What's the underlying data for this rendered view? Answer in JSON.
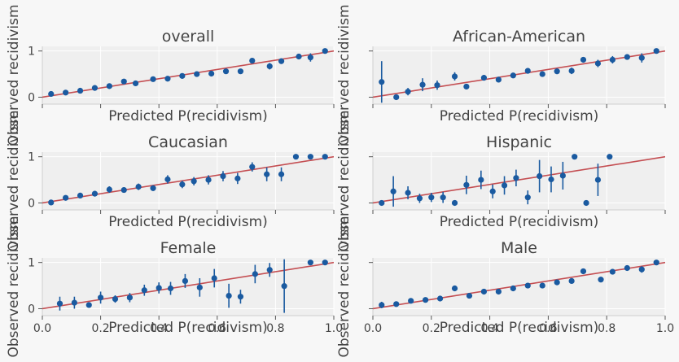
{
  "chart_data": [
    {
      "type": "scatter",
      "title": "overall",
      "xlabel": "Predicted P(recidivism)",
      "ylabel": "Observed recidivism",
      "xlim": [
        0,
        1
      ],
      "ylim": [
        -0.15,
        1.1
      ],
      "xticks": [
        0.0,
        0.2,
        0.4,
        0.6,
        0.8,
        1.0
      ],
      "yticks": [
        0,
        1
      ],
      "xtick_labels": [
        "",
        "",
        "",
        "",
        "",
        ""
      ],
      "ytick_labels": [
        "0",
        "1"
      ],
      "reference_line": [
        [
          0,
          0
        ],
        [
          1,
          1
        ]
      ],
      "points": [
        {
          "x": 0.03,
          "y": 0.07,
          "err": 0.05
        },
        {
          "x": 0.08,
          "y": 0.1,
          "err": 0.04
        },
        {
          "x": 0.13,
          "y": 0.14,
          "err": 0.03
        },
        {
          "x": 0.18,
          "y": 0.2,
          "err": 0.03
        },
        {
          "x": 0.23,
          "y": 0.24,
          "err": 0.03
        },
        {
          "x": 0.28,
          "y": 0.34,
          "err": 0.04
        },
        {
          "x": 0.32,
          "y": 0.3,
          "err": 0.03
        },
        {
          "x": 0.38,
          "y": 0.39,
          "err": 0.03
        },
        {
          "x": 0.43,
          "y": 0.4,
          "err": 0.03
        },
        {
          "x": 0.48,
          "y": 0.46,
          "err": 0.03
        },
        {
          "x": 0.53,
          "y": 0.5,
          "err": 0.04
        },
        {
          "x": 0.58,
          "y": 0.51,
          "err": 0.03
        },
        {
          "x": 0.63,
          "y": 0.56,
          "err": 0.04
        },
        {
          "x": 0.68,
          "y": 0.56,
          "err": 0.05
        },
        {
          "x": 0.72,
          "y": 0.79,
          "err": 0.04
        },
        {
          "x": 0.78,
          "y": 0.67,
          "err": 0.07
        },
        {
          "x": 0.82,
          "y": 0.78,
          "err": 0.06
        },
        {
          "x": 0.88,
          "y": 0.88,
          "err": 0.05
        },
        {
          "x": 0.92,
          "y": 0.86,
          "err": 0.09
        },
        {
          "x": 0.97,
          "y": 1.0,
          "err": 0.0
        }
      ]
    },
    {
      "type": "scatter",
      "title": "African-American",
      "xlabel": "Predicted P(recidivism)",
      "ylabel": "Observed recidivism",
      "xlim": [
        0,
        1
      ],
      "ylim": [
        -0.15,
        1.1
      ],
      "xticks": [
        0.0,
        0.2,
        0.4,
        0.6,
        0.8,
        1.0
      ],
      "yticks": [
        0,
        1
      ],
      "xtick_labels": [
        "",
        "",
        "",
        "",
        "",
        ""
      ],
      "ytick_labels": [
        "",
        ""
      ],
      "reference_line": [
        [
          0,
          0
        ],
        [
          1,
          1
        ]
      ],
      "points": [
        {
          "x": 0.03,
          "y": 0.33,
          "err": 0.45
        },
        {
          "x": 0.08,
          "y": 0.0,
          "err": 0.0
        },
        {
          "x": 0.12,
          "y": 0.12,
          "err": 0.08
        },
        {
          "x": 0.17,
          "y": 0.27,
          "err": 0.14
        },
        {
          "x": 0.22,
          "y": 0.26,
          "err": 0.1
        },
        {
          "x": 0.28,
          "y": 0.45,
          "err": 0.09
        },
        {
          "x": 0.32,
          "y": 0.23,
          "err": 0.06
        },
        {
          "x": 0.38,
          "y": 0.42,
          "err": 0.06
        },
        {
          "x": 0.43,
          "y": 0.38,
          "err": 0.06
        },
        {
          "x": 0.48,
          "y": 0.47,
          "err": 0.05
        },
        {
          "x": 0.53,
          "y": 0.57,
          "err": 0.06
        },
        {
          "x": 0.58,
          "y": 0.5,
          "err": 0.06
        },
        {
          "x": 0.63,
          "y": 0.56,
          "err": 0.06
        },
        {
          "x": 0.68,
          "y": 0.57,
          "err": 0.07
        },
        {
          "x": 0.72,
          "y": 0.81,
          "err": 0.05
        },
        {
          "x": 0.77,
          "y": 0.73,
          "err": 0.08
        },
        {
          "x": 0.82,
          "y": 0.81,
          "err": 0.08
        },
        {
          "x": 0.87,
          "y": 0.87,
          "err": 0.06
        },
        {
          "x": 0.92,
          "y": 0.85,
          "err": 0.1
        },
        {
          "x": 0.97,
          "y": 1.0,
          "err": 0.0
        }
      ]
    },
    {
      "type": "scatter",
      "title": "Caucasian",
      "xlabel": "Predicted P(recidivism)",
      "ylabel": "Observed recidivism",
      "xlim": [
        0,
        1
      ],
      "ylim": [
        -0.15,
        1.1
      ],
      "xticks": [
        0.0,
        0.2,
        0.4,
        0.6,
        0.8,
        1.0
      ],
      "yticks": [
        0,
        1
      ],
      "xtick_labels": [
        "",
        "",
        "",
        "",
        "",
        ""
      ],
      "ytick_labels": [
        "0",
        "1"
      ],
      "reference_line": [
        [
          0,
          0
        ],
        [
          1,
          1
        ]
      ],
      "points": [
        {
          "x": 0.03,
          "y": 0.01,
          "err": 0.02
        },
        {
          "x": 0.08,
          "y": 0.11,
          "err": 0.05
        },
        {
          "x": 0.13,
          "y": 0.16,
          "err": 0.05
        },
        {
          "x": 0.18,
          "y": 0.2,
          "err": 0.06
        },
        {
          "x": 0.23,
          "y": 0.29,
          "err": 0.07
        },
        {
          "x": 0.28,
          "y": 0.28,
          "err": 0.06
        },
        {
          "x": 0.33,
          "y": 0.35,
          "err": 0.07
        },
        {
          "x": 0.38,
          "y": 0.32,
          "err": 0.06
        },
        {
          "x": 0.43,
          "y": 0.51,
          "err": 0.09
        },
        {
          "x": 0.48,
          "y": 0.4,
          "err": 0.08
        },
        {
          "x": 0.52,
          "y": 0.47,
          "err": 0.09
        },
        {
          "x": 0.57,
          "y": 0.5,
          "err": 0.1
        },
        {
          "x": 0.62,
          "y": 0.58,
          "err": 0.11
        },
        {
          "x": 0.67,
          "y": 0.53,
          "err": 0.12
        },
        {
          "x": 0.72,
          "y": 0.78,
          "err": 0.1
        },
        {
          "x": 0.77,
          "y": 0.62,
          "err": 0.15
        },
        {
          "x": 0.82,
          "y": 0.62,
          "err": 0.15
        },
        {
          "x": 0.87,
          "y": 1.0,
          "err": 0.0
        },
        {
          "x": 0.92,
          "y": 1.0,
          "err": 0.0
        },
        {
          "x": 0.97,
          "y": 1.0,
          "err": 0.0
        }
      ]
    },
    {
      "type": "scatter",
      "title": "Hispanic",
      "xlabel": "Predicted P(recidivism)",
      "ylabel": "Observed recidivism",
      "xlim": [
        0,
        1
      ],
      "ylim": [
        -0.15,
        1.1
      ],
      "xticks": [
        0.0,
        0.2,
        0.4,
        0.6,
        0.8,
        1.0
      ],
      "yticks": [
        0,
        1
      ],
      "xtick_labels": [
        "",
        "",
        "",
        "",
        "",
        ""
      ],
      "ytick_labels": [
        "",
        ""
      ],
      "reference_line": [
        [
          0,
          0
        ],
        [
          1,
          1
        ]
      ],
      "points": [
        {
          "x": 0.03,
          "y": 0.0,
          "err": 0.0
        },
        {
          "x": 0.07,
          "y": 0.25,
          "err": 0.33
        },
        {
          "x": 0.12,
          "y": 0.22,
          "err": 0.14
        },
        {
          "x": 0.16,
          "y": 0.1,
          "err": 0.1
        },
        {
          "x": 0.2,
          "y": 0.12,
          "err": 0.1
        },
        {
          "x": 0.24,
          "y": 0.12,
          "err": 0.12
        },
        {
          "x": 0.28,
          "y": 0.0,
          "err": 0.0
        },
        {
          "x": 0.32,
          "y": 0.39,
          "err": 0.2
        },
        {
          "x": 0.37,
          "y": 0.5,
          "err": 0.2
        },
        {
          "x": 0.41,
          "y": 0.25,
          "err": 0.15
        },
        {
          "x": 0.45,
          "y": 0.38,
          "err": 0.2
        },
        {
          "x": 0.49,
          "y": 0.54,
          "err": 0.18
        },
        {
          "x": 0.53,
          "y": 0.12,
          "err": 0.15
        },
        {
          "x": 0.57,
          "y": 0.58,
          "err": 0.35
        },
        {
          "x": 0.61,
          "y": 0.51,
          "err": 0.28
        },
        {
          "x": 0.65,
          "y": 0.59,
          "err": 0.3
        },
        {
          "x": 0.69,
          "y": 1.0,
          "err": 0.0
        },
        {
          "x": 0.73,
          "y": 0.0,
          "err": 0.0
        },
        {
          "x": 0.77,
          "y": 0.5,
          "err": 0.35
        },
        {
          "x": 0.81,
          "y": 1.0,
          "err": 0.0
        }
      ]
    },
    {
      "type": "scatter",
      "title": "Female",
      "xlabel": "Predicted P(recidivism)",
      "ylabel": "Observed recidivism",
      "xlim": [
        0,
        1
      ],
      "ylim": [
        -0.15,
        1.1
      ],
      "xticks": [
        0.0,
        0.2,
        0.4,
        0.6,
        0.8,
        1.0
      ],
      "yticks": [
        0,
        1
      ],
      "xtick_labels": [
        "0.0",
        "0.2",
        "0.4",
        "0.6",
        "0.8",
        "1.0"
      ],
      "ytick_labels": [
        "0",
        "1"
      ],
      "reference_line": [
        [
          0,
          0
        ],
        [
          1,
          1
        ]
      ],
      "points": [
        {
          "x": 0.06,
          "y": 0.11,
          "err": 0.15
        },
        {
          "x": 0.11,
          "y": 0.13,
          "err": 0.13
        },
        {
          "x": 0.16,
          "y": 0.08,
          "err": 0.05
        },
        {
          "x": 0.2,
          "y": 0.24,
          "err": 0.13
        },
        {
          "x": 0.25,
          "y": 0.21,
          "err": 0.08
        },
        {
          "x": 0.3,
          "y": 0.24,
          "err": 0.1
        },
        {
          "x": 0.35,
          "y": 0.4,
          "err": 0.12
        },
        {
          "x": 0.4,
          "y": 0.45,
          "err": 0.12
        },
        {
          "x": 0.44,
          "y": 0.44,
          "err": 0.14
        },
        {
          "x": 0.49,
          "y": 0.6,
          "err": 0.15
        },
        {
          "x": 0.54,
          "y": 0.46,
          "err": 0.2
        },
        {
          "x": 0.59,
          "y": 0.66,
          "err": 0.2
        },
        {
          "x": 0.64,
          "y": 0.28,
          "err": 0.26
        },
        {
          "x": 0.68,
          "y": 0.26,
          "err": 0.15
        },
        {
          "x": 0.73,
          "y": 0.75,
          "err": 0.2
        },
        {
          "x": 0.78,
          "y": 0.84,
          "err": 0.15
        },
        {
          "x": 0.83,
          "y": 0.49,
          "err": 0.58
        },
        {
          "x": 0.92,
          "y": 1.0,
          "err": 0.0
        },
        {
          "x": 0.97,
          "y": 1.0,
          "err": 0.0
        }
      ]
    },
    {
      "type": "scatter",
      "title": "Male",
      "xlabel": "Predicted P(recidivism)",
      "ylabel": "Observed recidivism",
      "xlim": [
        0,
        1
      ],
      "ylim": [
        -0.15,
        1.1
      ],
      "xticks": [
        0.0,
        0.2,
        0.4,
        0.6,
        0.8,
        1.0
      ],
      "yticks": [
        0,
        1
      ],
      "xtick_labels": [
        "0.0",
        "0.2",
        "0.4",
        "0.6",
        "0.8",
        "1.0"
      ],
      "ytick_labels": [
        "",
        ""
      ],
      "reference_line": [
        [
          0,
          0
        ],
        [
          1,
          1
        ]
      ],
      "points": [
        {
          "x": 0.03,
          "y": 0.08,
          "err": 0.07
        },
        {
          "x": 0.08,
          "y": 0.1,
          "err": 0.05
        },
        {
          "x": 0.13,
          "y": 0.17,
          "err": 0.04
        },
        {
          "x": 0.18,
          "y": 0.19,
          "err": 0.04
        },
        {
          "x": 0.23,
          "y": 0.22,
          "err": 0.04
        },
        {
          "x": 0.28,
          "y": 0.44,
          "err": 0.06
        },
        {
          "x": 0.33,
          "y": 0.28,
          "err": 0.05
        },
        {
          "x": 0.38,
          "y": 0.37,
          "err": 0.04
        },
        {
          "x": 0.43,
          "y": 0.37,
          "err": 0.04
        },
        {
          "x": 0.48,
          "y": 0.44,
          "err": 0.04
        },
        {
          "x": 0.53,
          "y": 0.5,
          "err": 0.04
        },
        {
          "x": 0.58,
          "y": 0.5,
          "err": 0.05
        },
        {
          "x": 0.63,
          "y": 0.57,
          "err": 0.04
        },
        {
          "x": 0.68,
          "y": 0.6,
          "err": 0.04
        },
        {
          "x": 0.72,
          "y": 0.81,
          "err": 0.05
        },
        {
          "x": 0.78,
          "y": 0.63,
          "err": 0.06
        },
        {
          "x": 0.82,
          "y": 0.8,
          "err": 0.06
        },
        {
          "x": 0.87,
          "y": 0.88,
          "err": 0.05
        },
        {
          "x": 0.92,
          "y": 0.85,
          "err": 0.07
        },
        {
          "x": 0.97,
          "y": 1.0,
          "err": 0.0
        }
      ]
    }
  ],
  "colors": {
    "points": "#1a5aa0",
    "reference_line": "#c44e52",
    "axes_bg": "#efefef",
    "figure_bg": "#f7f7f7",
    "grid": "#ffffff",
    "text": "#444444"
  }
}
